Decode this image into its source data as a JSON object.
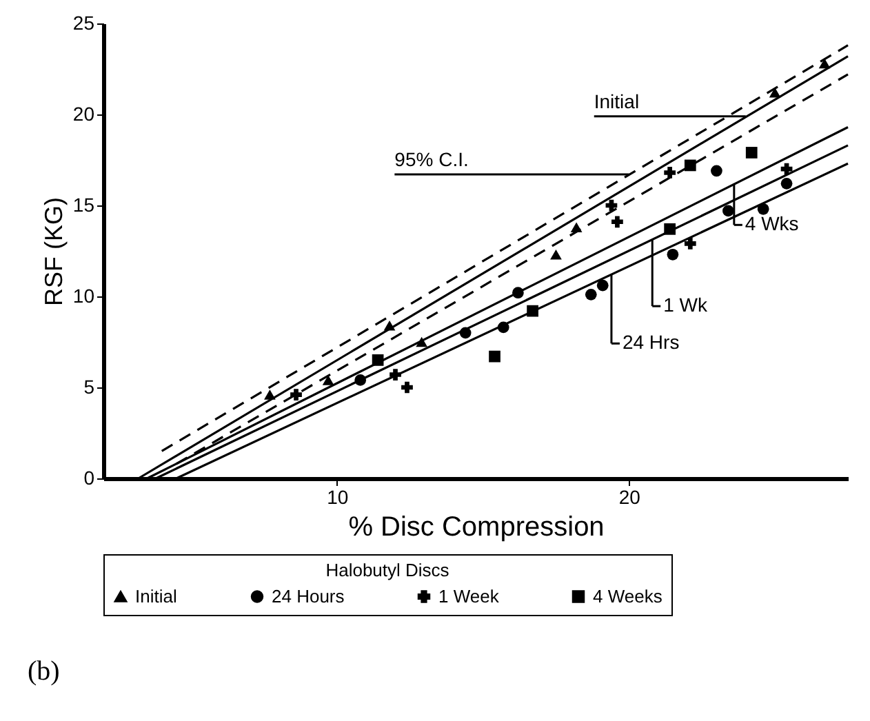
{
  "chart_data": {
    "type": "scatter",
    "xlabel": "% Disc Compression",
    "ylabel": "RSF (KG)",
    "legend_title": "Halobutyl Discs",
    "legend": "bottom",
    "grid": false,
    "xlim": [
      2,
      27.5
    ],
    "ylim": [
      0,
      25
    ],
    "xticks": [
      10,
      20
    ],
    "yticks": [
      0,
      5,
      10,
      15,
      20,
      25
    ],
    "series": [
      {
        "name": "Initial",
        "marker": "triangle",
        "color": "#000000",
        "x": [
          7.7,
          9.7,
          11.8,
          12.9,
          17.5,
          18.2,
          25.0,
          26.7
        ],
        "values": [
          4.6,
          5.4,
          8.4,
          7.5,
          12.3,
          13.8,
          21.2,
          22.8
        ]
      },
      {
        "name": "24 Hours",
        "marker": "circle",
        "color": "#000000",
        "x": [
          10.8,
          14.4,
          15.7,
          16.2,
          18.7,
          19.1,
          21.5,
          23.0,
          23.4,
          24.6,
          25.4
        ],
        "values": [
          5.4,
          8.0,
          8.3,
          10.2,
          10.1,
          10.6,
          12.3,
          16.9,
          14.7,
          14.8,
          16.2
        ]
      },
      {
        "name": "1 Week",
        "marker": "cross",
        "color": "#000000",
        "x": [
          8.6,
          12.0,
          12.4,
          19.4,
          19.6,
          21.4,
          22.1,
          25.4
        ],
        "values": [
          4.6,
          5.7,
          5.0,
          15.0,
          14.1,
          16.8,
          12.9,
          17.0
        ]
      },
      {
        "name": "4 Weeks",
        "marker": "square",
        "color": "#000000",
        "x": [
          11.4,
          15.4,
          16.7,
          21.4,
          22.1,
          24.2
        ],
        "values": [
          6.5,
          6.7,
          9.2,
          13.7,
          17.2,
          17.9
        ]
      },
      {
        "type": "line",
        "line_style": "solid",
        "color": "#000000",
        "x": [
          3.2,
          27.5
        ],
        "values": [
          0,
          23.2
        ]
      },
      {
        "type": "line",
        "line_style": "dashed",
        "color": "#000000",
        "x": [
          4.0,
          27.5
        ],
        "values": [
          1.5,
          23.8
        ]
      },
      {
        "type": "line",
        "line_style": "dashed",
        "color": "#000000",
        "x": [
          4.5,
          27.5
        ],
        "values": [
          0.8,
          22.2
        ]
      },
      {
        "type": "line",
        "line_style": "solid",
        "color": "#000000",
        "x": [
          3.5,
          27.5
        ],
        "values": [
          0,
          19.3
        ]
      },
      {
        "type": "line",
        "line_style": "solid",
        "color": "#000000",
        "x": [
          3.8,
          27.5
        ],
        "values": [
          0,
          18.3
        ]
      },
      {
        "type": "line",
        "line_style": "solid",
        "color": "#000000",
        "x": [
          4.5,
          27.5
        ],
        "values": [
          0,
          17.3
        ]
      }
    ],
    "annotations": [
      {
        "text": "Initial",
        "x": 24.0,
        "y": 19.9
      },
      {
        "text": "95% C.I.",
        "x": 20.0,
        "y": 16.7
      },
      {
        "text": "1 Wk",
        "x": 20.8,
        "y": 13.1
      },
      {
        "text": "24 Hrs",
        "x": 19.4,
        "y": 11.2
      },
      {
        "text": "4 Wks",
        "x": 23.6,
        "y": 16.2
      },
      "(b)"
    ]
  }
}
